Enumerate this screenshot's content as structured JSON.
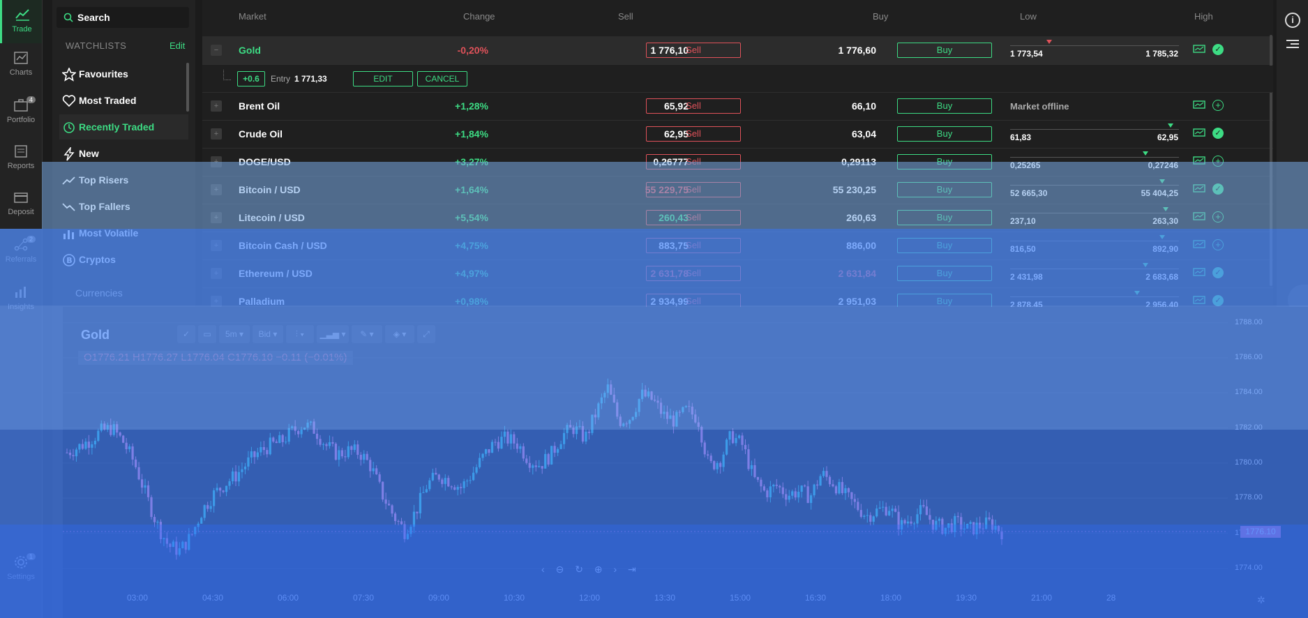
{
  "rail": [
    {
      "label": "Trade",
      "icon": "trend-up-icon",
      "active": true
    },
    {
      "label": "Charts",
      "icon": "chart-icon"
    },
    {
      "label": "Portfolio",
      "icon": "briefcase-icon",
      "badge": "4"
    },
    {
      "label": "Reports",
      "icon": "report-icon"
    },
    {
      "label": "Deposit",
      "icon": "card-icon"
    },
    {
      "label": "Referrals",
      "icon": "network-icon",
      "badge": "2"
    },
    {
      "label": "Insights",
      "icon": "insights-icon"
    },
    {
      "label": "Settings",
      "icon": "gear-icon",
      "badge": "1"
    }
  ],
  "sidebar": {
    "search_label": "Search",
    "watchlists_label": "WATCHLISTS",
    "edit_label": "Edit",
    "items": [
      {
        "label": "Favourites",
        "icon": "star-icon"
      },
      {
        "label": "Most Traded",
        "icon": "heart-icon"
      },
      {
        "label": "Recently Traded",
        "icon": "recent-icon",
        "active": true
      },
      {
        "label": "New",
        "icon": "bolt-icon"
      },
      {
        "label": "Top Risers",
        "icon": "rise-icon"
      },
      {
        "label": "Top Fallers",
        "icon": "fall-icon"
      },
      {
        "label": "Most Volatile",
        "icon": "bars-icon"
      },
      {
        "label": "Cryptos",
        "icon": "bitcoin-icon"
      }
    ],
    "section_label": "Currencies"
  },
  "table": {
    "headers": {
      "market": "Market",
      "change": "Change",
      "sell": "Sell",
      "buy": "Buy",
      "low": "Low",
      "high": "High"
    },
    "position": {
      "pl": "+0.6",
      "entry_label": "Entry",
      "entry": "1 771,33",
      "edit": "EDIT",
      "cancel": "CANCEL"
    },
    "rows": [
      {
        "name": "Gold",
        "change": "-0,20%",
        "dir": "neg",
        "sell": "1 776,10",
        "buy": "1 776,60",
        "low": "1 773,54",
        "high": "1 785,32",
        "sell_label": "Sell",
        "buy_label": "Buy",
        "status": "ok",
        "range_pos": 0.23
      },
      {
        "name": "Brent Oil",
        "change": "+1,28%",
        "dir": "pos",
        "sell": "65,92",
        "buy": "66,10",
        "offline": "Market offline",
        "sell_label": "Sell",
        "buy_label": "Buy",
        "status": "add"
      },
      {
        "name": "Crude Oil",
        "change": "+1,84%",
        "dir": "pos",
        "sell": "62,95",
        "buy": "63,04",
        "low": "61,83",
        "high": "62,95",
        "sell_label": "Sell",
        "buy_label": "Buy",
        "status": "ok",
        "range_pos": 0.95
      },
      {
        "name": "DOGE/USD",
        "change": "+3,27%",
        "dir": "pos",
        "sell": "0,26777",
        "buy": "0,29113",
        "low": "0,25265",
        "high": "0,27246",
        "sell_label": "Sell",
        "buy_label": "Buy",
        "status": "add",
        "range_pos": 0.8
      },
      {
        "name": "Bitcoin / USD",
        "change": "+1,64%",
        "dir": "pos",
        "sell": "55 229,75",
        "buy": "55 230,25",
        "low": "52 665,30",
        "high": "55 404,25",
        "sell_label": "Sell",
        "buy_label": "Buy",
        "status": "ok",
        "range_pos": 0.9,
        "sell_neg": true
      },
      {
        "name": "Litecoin / USD",
        "change": "+5,54%",
        "dir": "pos",
        "sell": "260,43",
        "buy": "260,63",
        "low": "237,10",
        "high": "263,30",
        "sell_label": "Sell",
        "buy_label": "Buy",
        "status": "add",
        "range_pos": 0.92,
        "sell_pos": true
      },
      {
        "name": "Bitcoin Cash / USD",
        "change": "+4,75%",
        "dir": "pos",
        "sell": "883,75",
        "buy": "886,00",
        "low": "816,50",
        "high": "892,90",
        "sell_label": "Sell",
        "buy_label": "Buy",
        "status": "add",
        "range_pos": 0.9
      },
      {
        "name": "Ethereum / USD",
        "change": "+4,97%",
        "dir": "pos",
        "sell": "2 631,78",
        "buy": "2 631,84",
        "low": "2 431,98",
        "high": "2 683,68",
        "sell_label": "Sell",
        "buy_label": "Buy",
        "status": "ok",
        "range_pos": 0.8,
        "sell_neg": true,
        "buy_neg": true
      },
      {
        "name": "Palladium",
        "change": "+0,98%",
        "dir": "pos",
        "sell": "2 934,99",
        "buy": "2 951,03",
        "low": "2 878,45",
        "high": "2 956,40",
        "sell_label": "Sell",
        "buy_label": "Buy",
        "status": "ok",
        "range_pos": 0.75
      }
    ]
  },
  "chart": {
    "title": "Gold",
    "interval": "5m",
    "price_type": "Bid",
    "ohlc": "O1776.21  H1776.27  L1776.04  C1776.10  −0.11 (−0.01%)",
    "last_price": "1776.10",
    "colors": {
      "up": "#26d6c2",
      "down": "#ff7ab4"
    }
  },
  "chart_data": {
    "type": "candlestick",
    "title": "Gold",
    "y_ticks": [
      "1788.00",
      "1786.00",
      "1784.00",
      "1782.00",
      "1780.00",
      "1778.00",
      "1776.00",
      "1774.00"
    ],
    "x_ticks": [
      "03:00",
      "04:30",
      "06:00",
      "07:30",
      "09:00",
      "10:30",
      "12:00",
      "13:30",
      "15:00",
      "16:30",
      "18:00",
      "19:30",
      "21:00",
      "28"
    ],
    "ylim": [
      1773.0,
      1788.5
    ],
    "close_path": [
      1780.6,
      1780.9,
      1781.3,
      1781.8,
      1782.0,
      1781.2,
      1780.0,
      1778.2,
      1776.5,
      1775.3,
      1775.0,
      1775.8,
      1777.3,
      1778.2,
      1778.8,
      1779.3,
      1780.0,
      1780.6,
      1781.0,
      1781.2,
      1781.8,
      1782.2,
      1781.9,
      1781.0,
      1780.5,
      1780.7,
      1780.6,
      1779.8,
      1778.2,
      1777.0,
      1776.1,
      1777.3,
      1778.8,
      1779.3,
      1779.0,
      1778.6,
      1779.4,
      1780.4,
      1781.2,
      1781.4,
      1781.1,
      1780.2,
      1779.9,
      1780.5,
      1781.6,
      1782.0,
      1781.4,
      1782.9,
      1784.3,
      1782.4,
      1782.6,
      1783.9,
      1783.6,
      1782.7,
      1782.4,
      1783.0,
      1782.6,
      1779.8,
      1780.2,
      1781.6,
      1781.0,
      1779.1,
      1778.3,
      1778.7,
      1778.2,
      1778.4,
      1778.1,
      1779.4,
      1778.9,
      1778.2,
      1777.6,
      1777.0,
      1777.3,
      1777.5,
      1776.4,
      1776.9,
      1777.3,
      1776.5,
      1776.3,
      1776.6,
      1776.2,
      1776.4,
      1776.6,
      1776.1
    ]
  },
  "window_chrome": {
    "info_icon": "i"
  }
}
